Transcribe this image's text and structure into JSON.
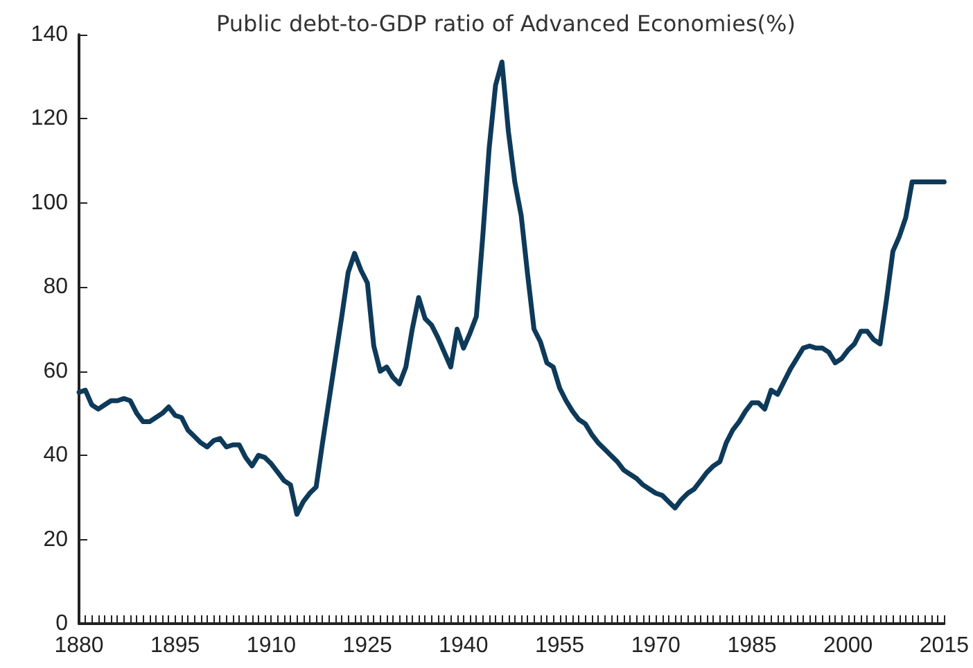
{
  "chart_data": {
    "type": "line",
    "title": "Public debt-to-GDP ratio of Advanced Economies(%)",
    "x": [
      1880,
      1881,
      1882,
      1883,
      1884,
      1885,
      1886,
      1887,
      1888,
      1889,
      1890,
      1891,
      1892,
      1893,
      1894,
      1895,
      1896,
      1897,
      1898,
      1899,
      1900,
      1901,
      1902,
      1903,
      1904,
      1905,
      1906,
      1907,
      1908,
      1909,
      1910,
      1911,
      1912,
      1913,
      1914,
      1915,
      1916,
      1917,
      1918,
      1919,
      1920,
      1921,
      1922,
      1923,
      1924,
      1925,
      1926,
      1927,
      1928,
      1929,
      1930,
      1931,
      1932,
      1933,
      1934,
      1935,
      1936,
      1937,
      1938,
      1939,
      1940,
      1941,
      1942,
      1943,
      1944,
      1945,
      1946,
      1947,
      1948,
      1949,
      1950,
      1951,
      1952,
      1953,
      1954,
      1955,
      1956,
      1957,
      1958,
      1959,
      1960,
      1961,
      1962,
      1963,
      1964,
      1965,
      1966,
      1967,
      1968,
      1969,
      1970,
      1971,
      1972,
      1973,
      1974,
      1975,
      1976,
      1977,
      1978,
      1979,
      1980,
      1981,
      1982,
      1983,
      1984,
      1985,
      1986,
      1987,
      1988,
      1989,
      1990,
      1991,
      1992,
      1993,
      1994,
      1995,
      1996,
      1997,
      1998,
      1999,
      2000,
      2001,
      2002,
      2003,
      2004,
      2005,
      2006,
      2007,
      2008,
      2009,
      2010,
      2011,
      2012,
      2013,
      2014,
      2015
    ],
    "series": [
      {
        "color": "#0e3a5a",
        "values": [
          55,
          55.5,
          52,
          51,
          52,
          53,
          53,
          53.5,
          53,
          50,
          48,
          48,
          49,
          50,
          51.5,
          49.5,
          49,
          46,
          44.5,
          43,
          42,
          43.5,
          44,
          42,
          42.5,
          42.5,
          39.5,
          37.5,
          40,
          39.5,
          38,
          36,
          34,
          33,
          26,
          29,
          31,
          32.5,
          43,
          53,
          63,
          73,
          83.5,
          88,
          84,
          81,
          66,
          60,
          61,
          58.5,
          57,
          61,
          70,
          77.5,
          72.5,
          71,
          68,
          64.5,
          61,
          70,
          65.5,
          69,
          73,
          92,
          113,
          128,
          133.5,
          117,
          105,
          97,
          83,
          70,
          67,
          62,
          61,
          56,
          53,
          50.5,
          48.5,
          47.5,
          45,
          43,
          41.5,
          40,
          38.5,
          36.5,
          35.5,
          34.5,
          33,
          32,
          31,
          30.5,
          29,
          27.5,
          29.5,
          31,
          32,
          34,
          36,
          37.5,
          38.5,
          43,
          46,
          48,
          50.5,
          52.5,
          52.5,
          51,
          55.5,
          54.5,
          57.5,
          60.5,
          63,
          65.5,
          66,
          65.5,
          65.5,
          64.5,
          62,
          63,
          65,
          66.5,
          69.5,
          69.5,
          67.5,
          66.5,
          77,
          88.5,
          92,
          96.5,
          105,
          105,
          105,
          105,
          105,
          105
        ]
      }
    ],
    "xlim": [
      1880,
      2015
    ],
    "xticks": [
      1880,
      1895,
      1910,
      1925,
      1940,
      1955,
      1970,
      1985,
      2000,
      2015
    ],
    "ylim": [
      0,
      140
    ],
    "yticks": [
      0,
      20,
      40,
      60,
      80,
      100,
      120,
      140
    ],
    "grid": false,
    "marker": "none",
    "line_style": "solid"
  }
}
